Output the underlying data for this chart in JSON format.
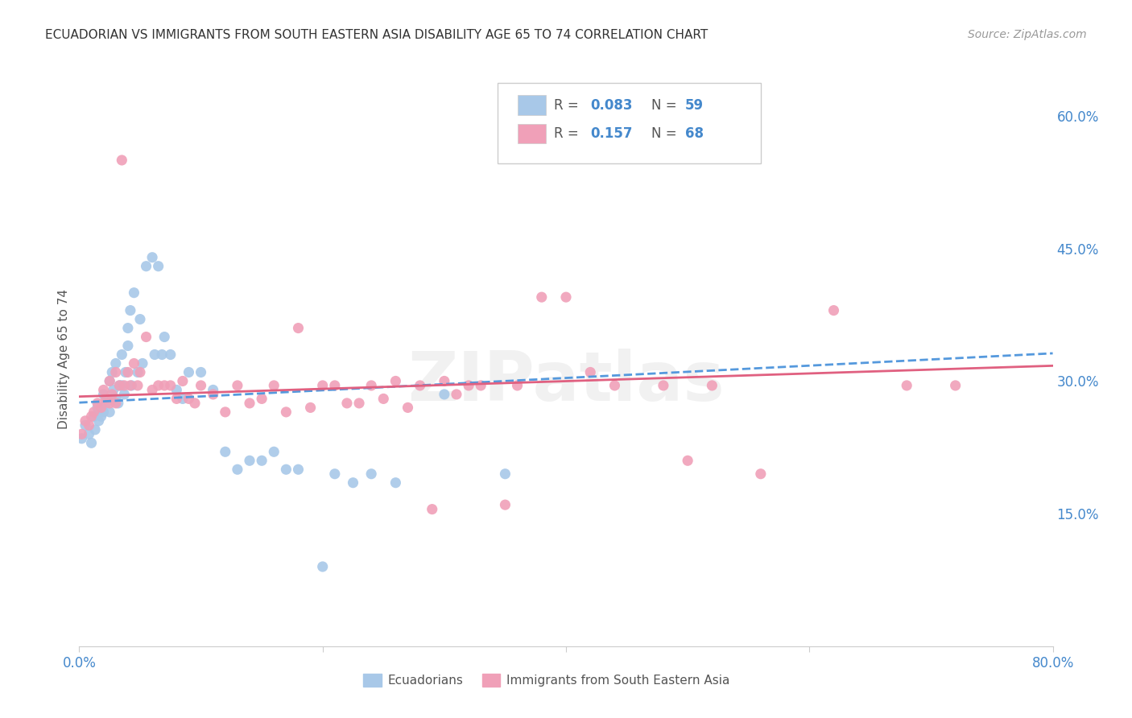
{
  "title": "ECUADORIAN VS IMMIGRANTS FROM SOUTH EASTERN ASIA DISABILITY AGE 65 TO 74 CORRELATION CHART",
  "source": "Source: ZipAtlas.com",
  "ylabel": "Disability Age 65 to 74",
  "xlim": [
    0.0,
    0.8
  ],
  "ylim": [
    0.0,
    0.65
  ],
  "grid_color": "#cccccc",
  "background_color": "#ffffff",
  "watermark": "ZIPatlas",
  "series": [
    {
      "name": "Ecuadorians",
      "R": 0.083,
      "N": 59,
      "color": "#a8c8e8",
      "line_color": "#5599dd",
      "line_style": "--",
      "x": [
        0.002,
        0.005,
        0.008,
        0.01,
        0.012,
        0.013,
        0.015,
        0.016,
        0.018,
        0.02,
        0.02,
        0.022,
        0.023,
        0.025,
        0.025,
        0.027,
        0.028,
        0.03,
        0.03,
        0.032,
        0.033,
        0.035,
        0.035,
        0.037,
        0.038,
        0.04,
        0.04,
        0.042,
        0.043,
        0.045,
        0.048,
        0.05,
        0.052,
        0.055,
        0.06,
        0.062,
        0.065,
        0.068,
        0.07,
        0.075,
        0.08,
        0.085,
        0.09,
        0.1,
        0.11,
        0.12,
        0.13,
        0.14,
        0.15,
        0.16,
        0.17,
        0.18,
        0.2,
        0.21,
        0.225,
        0.24,
        0.26,
        0.3,
        0.35
      ],
      "y": [
        0.235,
        0.25,
        0.24,
        0.23,
        0.26,
        0.245,
        0.27,
        0.255,
        0.26,
        0.285,
        0.265,
        0.275,
        0.28,
        0.3,
        0.265,
        0.31,
        0.29,
        0.32,
        0.28,
        0.275,
        0.295,
        0.33,
        0.295,
        0.285,
        0.31,
        0.36,
        0.34,
        0.38,
        0.295,
        0.4,
        0.31,
        0.37,
        0.32,
        0.43,
        0.44,
        0.33,
        0.43,
        0.33,
        0.35,
        0.33,
        0.29,
        0.28,
        0.31,
        0.31,
        0.29,
        0.22,
        0.2,
        0.21,
        0.21,
        0.22,
        0.2,
        0.2,
        0.09,
        0.195,
        0.185,
        0.195,
        0.185,
        0.285,
        0.195
      ]
    },
    {
      "name": "Immigrants from South Eastern Asia",
      "R": 0.157,
      "N": 68,
      "color": "#f0a0b8",
      "line_color": "#e06080",
      "line_style": "-",
      "x": [
        0.002,
        0.005,
        0.008,
        0.01,
        0.012,
        0.015,
        0.018,
        0.02,
        0.022,
        0.025,
        0.025,
        0.027,
        0.03,
        0.03,
        0.033,
        0.035,
        0.037,
        0.04,
        0.042,
        0.045,
        0.048,
        0.05,
        0.055,
        0.06,
        0.065,
        0.07,
        0.075,
        0.08,
        0.085,
        0.09,
        0.095,
        0.1,
        0.11,
        0.12,
        0.13,
        0.14,
        0.15,
        0.16,
        0.17,
        0.18,
        0.19,
        0.2,
        0.21,
        0.22,
        0.23,
        0.24,
        0.25,
        0.26,
        0.27,
        0.28,
        0.29,
        0.3,
        0.31,
        0.32,
        0.33,
        0.35,
        0.36,
        0.38,
        0.4,
        0.42,
        0.44,
        0.48,
        0.5,
        0.52,
        0.56,
        0.62,
        0.68,
        0.72
      ],
      "y": [
        0.24,
        0.255,
        0.25,
        0.26,
        0.265,
        0.275,
        0.27,
        0.29,
        0.28,
        0.3,
        0.275,
        0.285,
        0.31,
        0.275,
        0.295,
        0.55,
        0.295,
        0.31,
        0.295,
        0.32,
        0.295,
        0.31,
        0.35,
        0.29,
        0.295,
        0.295,
        0.295,
        0.28,
        0.3,
        0.28,
        0.275,
        0.295,
        0.285,
        0.265,
        0.295,
        0.275,
        0.28,
        0.295,
        0.265,
        0.36,
        0.27,
        0.295,
        0.295,
        0.275,
        0.275,
        0.295,
        0.28,
        0.3,
        0.27,
        0.295,
        0.155,
        0.3,
        0.285,
        0.295,
        0.295,
        0.16,
        0.295,
        0.395,
        0.395,
        0.31,
        0.295,
        0.295,
        0.21,
        0.295,
        0.195,
        0.38,
        0.295,
        0.295
      ]
    }
  ],
  "legend_R_color": "#4488cc",
  "legend_N_color": "#4488cc",
  "bottom_legend": [
    {
      "name": "Ecuadorians",
      "color": "#a8c8e8"
    },
    {
      "name": "Immigrants from South Eastern Asia",
      "color": "#f0a0b8"
    }
  ]
}
